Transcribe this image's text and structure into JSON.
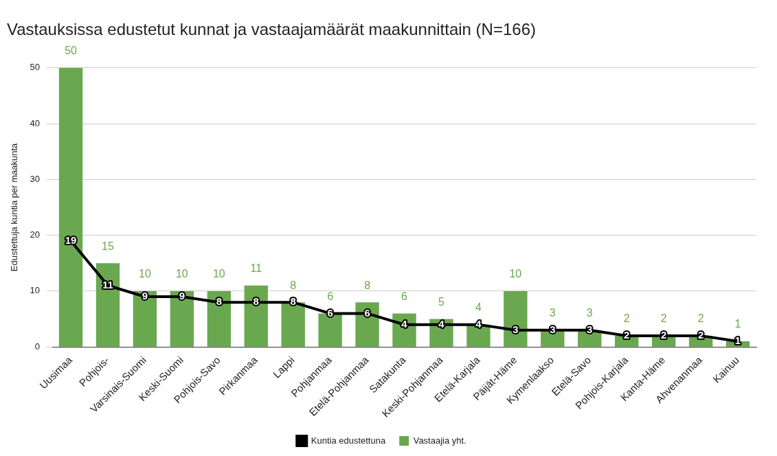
{
  "chart_data": {
    "type": "bar",
    "title": "Vastauksissa edustetut kunnat ja vastaajamäärät maakunnittain (N=166)",
    "y_label": "Edustettuja kuntia per maakunta",
    "categories": [
      "Uusimaa",
      "Pohjois-",
      "Varsinais-Suomi",
      "Keski-Suomi",
      "Pohjois-Savo",
      "Pirkanmaa",
      "Lappi",
      "Pohjanmaa",
      "Etelä-Pohjanmaa",
      "Satakunta",
      "Keski-Pohjanmaa",
      "Etelä-Karjala",
      "Päijät-Häme",
      "Kymenlaakso",
      "Etelä-Savo",
      "Pohjois-Karjala",
      "Kanta-Häme",
      "Ahvenanmaa",
      "Kainuu"
    ],
    "series": [
      {
        "name": "Vastaajia yht.",
        "type": "bar",
        "color": "#6aa84f",
        "values": [
          50,
          15,
          10,
          10,
          10,
          11,
          8,
          6,
          8,
          6,
          5,
          4,
          10,
          3,
          3,
          2,
          2,
          2,
          1
        ]
      },
      {
        "name": "Kuntia edustettuna",
        "type": "line",
        "color": "#000000",
        "values": [
          19,
          11,
          9,
          9,
          8,
          8,
          8,
          6,
          6,
          4,
          4,
          4,
          3,
          3,
          3,
          2,
          2,
          2,
          1
        ]
      }
    ],
    "ylim": [
      0,
      50
    ],
    "yticks": [
      0,
      10,
      20,
      30,
      40,
      50
    ],
    "grid": true,
    "legend": "bottom",
    "data_labels": true
  }
}
